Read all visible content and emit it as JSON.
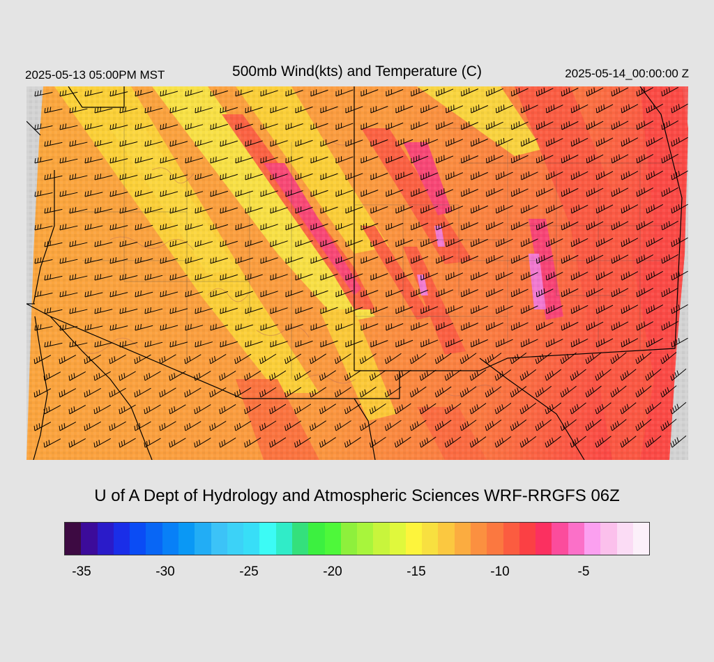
{
  "header": {
    "local_time": "2025-05-13 05:00PM MST",
    "title": "500mb Wind(kts) and Temperature (C)",
    "valid_time": "2025-05-14_00:00:00 Z"
  },
  "credit": "U of A Dept of Hydrology and Atmospheric Sciences WRF-RRGFS 06Z",
  "colorbar": {
    "colors": [
      "#3d0a42",
      "#3c0b9a",
      "#2a1bc9",
      "#1a2ee8",
      "#0a4cf5",
      "#0866f5",
      "#0880f7",
      "#0a98f5",
      "#22adf5",
      "#3cc3f7",
      "#3cd2f7",
      "#38def7",
      "#3cfbf5",
      "#30ecc8",
      "#34e07c",
      "#3cf040",
      "#4ef83a",
      "#8ef03c",
      "#a8f53c",
      "#c8f53c",
      "#e0f83c",
      "#fdf43c",
      "#f8e040",
      "#fbc840",
      "#fbac40",
      "#fb9040",
      "#fb7840",
      "#fb5c40",
      "#fb4044",
      "#fb3060",
      "#fb4c9c",
      "#fb70c8",
      "#fba0f0",
      "#fbc0ec",
      "#fbdcf5",
      "#fcf0fa"
    ],
    "tick_labels": [
      "-35",
      "-30",
      "-25",
      "-20",
      "-15",
      "-10",
      "-5"
    ]
  },
  "map": {
    "field": "500mb temperature (C)",
    "background_color": "#fba040",
    "band_colors": [
      "#fbd838",
      "#f8ec48",
      "#fb5c44",
      "#f8407c",
      "#f07ae0"
    ]
  }
}
